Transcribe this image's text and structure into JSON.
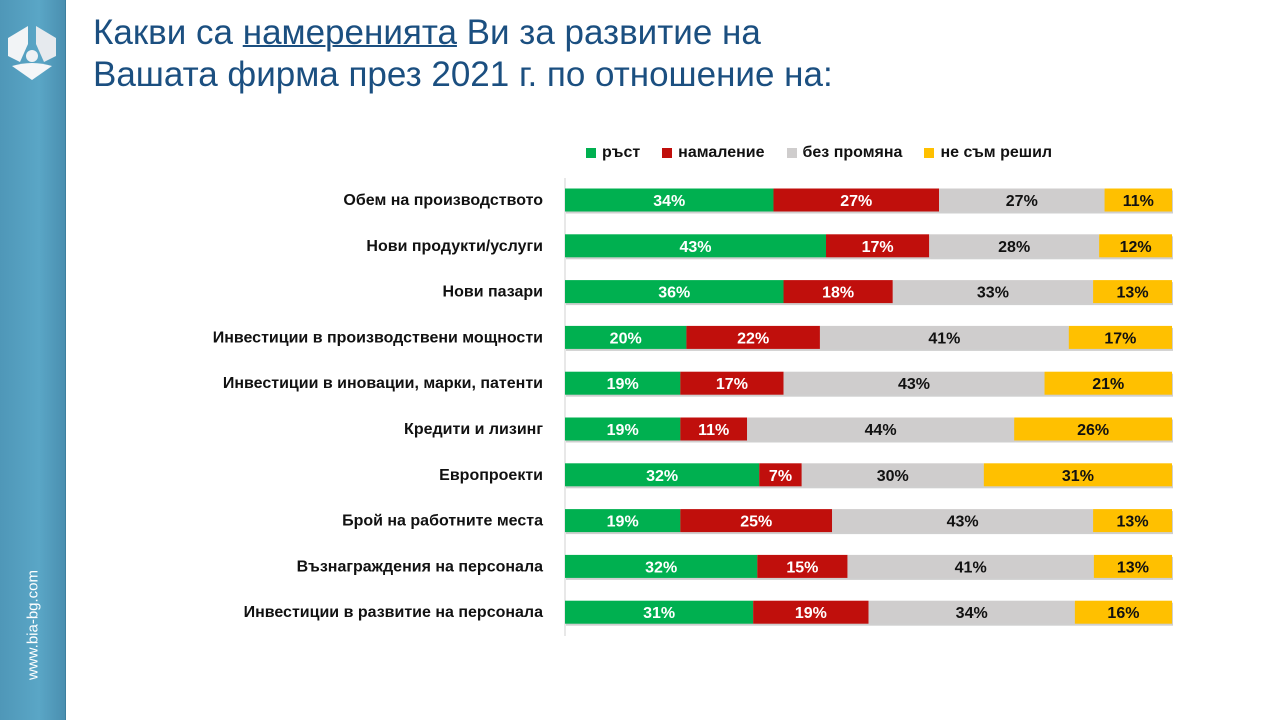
{
  "sidebar": {
    "url": "www.bia-bg.com"
  },
  "title": {
    "before": "Какви са ",
    "underlined": "намеренията",
    "after": " Ви за развитие на",
    "line2": "Вашата фирма през 2021 г. по отношение на:"
  },
  "chart_data": {
    "type": "bar",
    "orientation": "horizontal-stacked-100",
    "categories": [
      "Обем на производството",
      "Нови продукти/услуги",
      "Нови пазари",
      "Инвестиции в производствени  мощности",
      "Инвестиции в иновации, марки, патенти",
      "Кредити и лизинг",
      "Европроекти",
      "Брой на работните  места",
      "Възнаграждения  на персонала",
      "Инвестиции в развитие на персонала"
    ],
    "series": [
      {
        "name": "ръст",
        "color": "#00b050",
        "label_color": "#ffffff",
        "values": [
          34,
          43,
          36,
          20,
          19,
          19,
          32,
          19,
          32,
          31
        ]
      },
      {
        "name": "намаление",
        "color": "#c00f0c",
        "label_color": "#ffffff",
        "values": [
          27,
          17,
          18,
          22,
          17,
          11,
          7,
          25,
          15,
          19
        ]
      },
      {
        "name": "без промяна",
        "color": "#cfcdcd",
        "label_color": "#111111",
        "values": [
          27,
          28,
          33,
          41,
          43,
          44,
          30,
          43,
          41,
          34
        ]
      },
      {
        "name": "не съм решил",
        "color": "#ffc000",
        "label_color": "#111111",
        "values": [
          11,
          12,
          13,
          17,
          21,
          26,
          31,
          13,
          13,
          16
        ]
      }
    ],
    "unit": "%",
    "legend": "top"
  }
}
